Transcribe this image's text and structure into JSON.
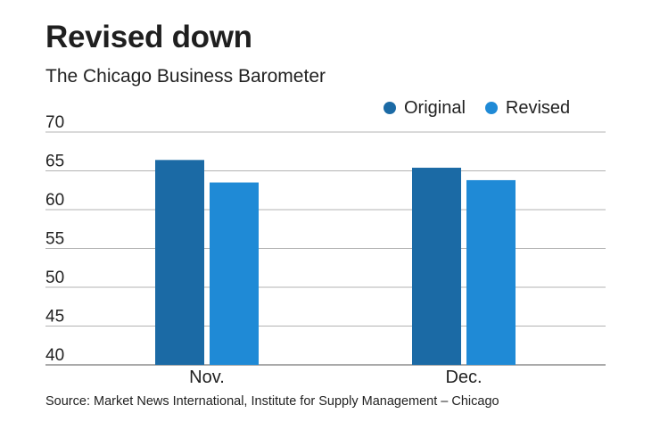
{
  "chart_data": {
    "type": "bar",
    "title": "Revised down",
    "subtitle": "The Chicago Business Barometer",
    "categories": [
      "Nov.",
      "Dec."
    ],
    "series": [
      {
        "name": "Original",
        "color": "#1b6aa5",
        "values": [
          66.4,
          65.4
        ]
      },
      {
        "name": "Revised",
        "color": "#1f8ad6",
        "values": [
          63.5,
          63.8
        ]
      }
    ],
    "yticks": [
      40,
      45,
      50,
      55,
      60,
      65,
      70
    ],
    "ylim": [
      40,
      70
    ],
    "grid": true,
    "legend_position": "top-right",
    "source": "Source: Market News International, Institute for Supply Management – Chicago"
  }
}
